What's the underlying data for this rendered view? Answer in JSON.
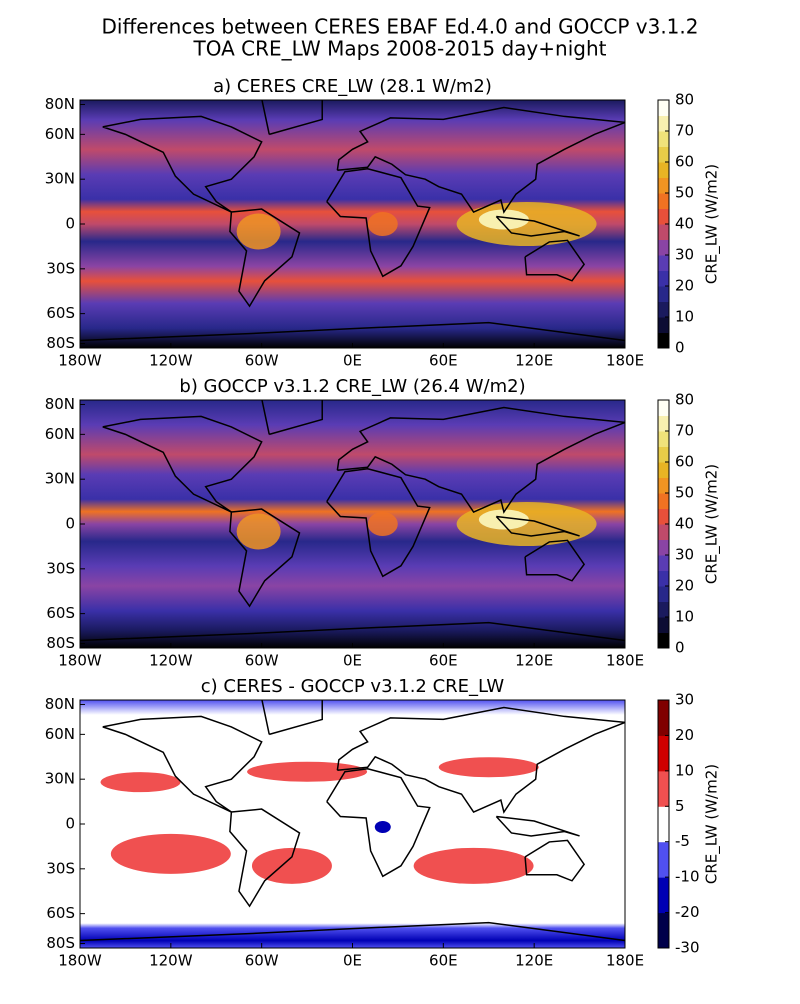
{
  "title": [
    "Differences between CERES EBAF Ed.4.0 and GOCCP v3.1.2",
    "TOA CRE_LW Maps 2008-2015 day+night"
  ],
  "panels": [
    {
      "title": "a) CERES CRE_LW (28.1 W/m2)",
      "xlim": [
        -180,
        180
      ],
      "ylim": [
        -83,
        83
      ],
      "xticks": [
        {
          "value": -180,
          "label": "180W"
        },
        {
          "value": -120,
          "label": "120W"
        },
        {
          "value": -60,
          "label": "60W"
        },
        {
          "value": 0,
          "label": "0E"
        },
        {
          "value": 60,
          "label": "60E"
        },
        {
          "value": 120,
          "label": "120E"
        },
        {
          "value": 180,
          "label": "180E"
        }
      ],
      "yticks": [
        {
          "value": 80,
          "label": "80N"
        },
        {
          "value": 60,
          "label": "60N"
        },
        {
          "value": 30,
          "label": "30N"
        },
        0,
        {
          "value": -30,
          "label": "30S"
        },
        {
          "value": -60,
          "label": "60S"
        },
        {
          "value": -80,
          "label": "80S"
        }
      ],
      "colorbar": {
        "label": "CRE_LW (W/m2)",
        "ticks": [
          0,
          10,
          20,
          30,
          40,
          50,
          60,
          70,
          80
        ],
        "colors": [
          "#000000",
          "#0c0c34",
          "#1a1a5e",
          "#28288a",
          "#3a30a8",
          "#5a3cb4",
          "#8a44a4",
          "#c04a6a",
          "#e8503a",
          "#f07222",
          "#f09422",
          "#e8b424",
          "#e8cc48",
          "#f0e27a",
          "#f8f0b0",
          "#fffff4"
        ]
      }
    },
    {
      "title": "b) GOCCP v3.1.2 CRE_LW (26.4 W/m2)",
      "xlim": [
        -180,
        180
      ],
      "ylim": [
        -83,
        83
      ],
      "xticks": [
        {
          "value": -180,
          "label": "180W"
        },
        {
          "value": -120,
          "label": "120W"
        },
        {
          "value": -60,
          "label": "60W"
        },
        {
          "value": 0,
          "label": "0E"
        },
        {
          "value": 60,
          "label": "60E"
        },
        {
          "value": 120,
          "label": "120E"
        },
        {
          "value": 180,
          "label": "180E"
        }
      ],
      "yticks": [
        {
          "value": 80,
          "label": "80N"
        },
        {
          "value": 60,
          "label": "60N"
        },
        {
          "value": 30,
          "label": "30N"
        },
        0,
        {
          "value": -30,
          "label": "30S"
        },
        {
          "value": -60,
          "label": "60S"
        },
        {
          "value": -80,
          "label": "80S"
        }
      ],
      "colorbar": {
        "label": "CRE_LW (W/m2)",
        "ticks": [
          0,
          10,
          20,
          30,
          40,
          50,
          60,
          70,
          80
        ],
        "colors": [
          "#000000",
          "#0c0c34",
          "#1a1a5e",
          "#28288a",
          "#3a30a8",
          "#5a3cb4",
          "#8a44a4",
          "#c04a6a",
          "#e8503a",
          "#f07222",
          "#f09422",
          "#e8b424",
          "#e8cc48",
          "#f0e27a",
          "#f8f0b0",
          "#fffff4"
        ]
      }
    },
    {
      "title": "c) CERES - GOCCP v3.1.2 CRE_LW",
      "xlim": [
        -180,
        180
      ],
      "ylim": [
        -83,
        83
      ],
      "xticks": [
        {
          "value": -180,
          "label": "180W"
        },
        {
          "value": -120,
          "label": "120W"
        },
        {
          "value": -60,
          "label": "60W"
        },
        {
          "value": 0,
          "label": "0E"
        },
        {
          "value": 60,
          "label": "60E"
        },
        {
          "value": 120,
          "label": "120E"
        },
        {
          "value": 180,
          "label": "180E"
        }
      ],
      "yticks": [
        {
          "value": 80,
          "label": "80N"
        },
        {
          "value": 60,
          "label": "60N"
        },
        {
          "value": 30,
          "label": "30N"
        },
        0,
        {
          "value": -30,
          "label": "30S"
        },
        {
          "value": -60,
          "label": "60S"
        },
        {
          "value": -80,
          "label": "80S"
        }
      ],
      "colorbar": {
        "label": "CRE_LW (W/m2)",
        "ticks": [
          -30,
          -20,
          -10,
          -5,
          5,
          10,
          20,
          30
        ],
        "colors": [
          "#00004a",
          "#0000b4",
          "#5050f0",
          "#ffffff",
          "#f05050",
          "#d00000",
          "#800000"
        ]
      }
    }
  ]
}
